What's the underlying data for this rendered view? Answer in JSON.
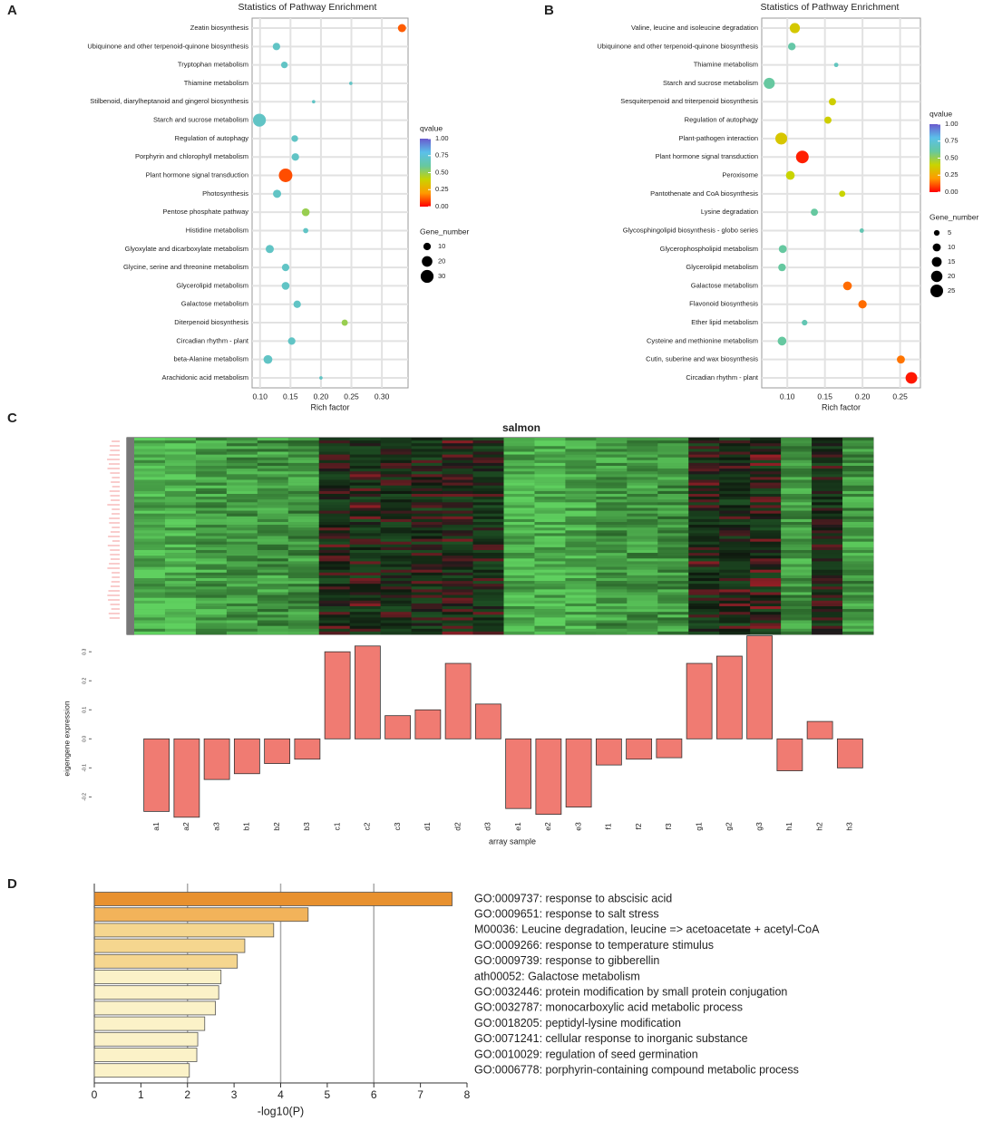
{
  "chart_data": [
    {
      "type": "bubble",
      "label": "A",
      "title": "Statistics of Pathway Enrichment",
      "xlabel": "Rich factor",
      "categories": [
        "Zeatin biosynthesis",
        "Ubiquinone and other terpenoid-quinone biosynthesis",
        "Tryptophan metabolism",
        "Thiamine metabolism",
        "Stilbenoid, diarylheptanoid and gingerol biosynthesis",
        "Starch and sucrose metabolism",
        "Regulation of autophagy",
        "Porphyrin and chlorophyll metabolism",
        "Plant hormone signal transduction",
        "Photosynthesis",
        "Pentose phosphate pathway",
        "Histidine metabolism",
        "Glyoxylate and dicarboxylate metabolism",
        "Glycine, serine and threonine metabolism",
        "Glycerolipid metabolism",
        "Galactose metabolism",
        "Diterpenoid biosynthesis",
        "Circadian rhythm - plant",
        "beta-Alanine metabolism",
        "Arachidonic acid metabolism"
      ],
      "values": [
        0.333,
        0.127,
        0.14,
        0.249,
        0.188,
        0.099,
        0.157,
        0.158,
        0.142,
        0.128,
        0.175,
        0.175,
        0.116,
        0.142,
        0.142,
        0.161,
        0.239,
        0.152,
        0.113,
        0.2
      ],
      "gene_number": [
        12,
        10,
        8,
        2,
        2,
        30,
        8,
        10,
        33,
        12,
        11,
        5,
        12,
        10,
        11,
        10,
        7,
        10,
        14,
        2
      ],
      "qvalue": [
        0.12,
        0.7,
        0.7,
        0.7,
        0.7,
        0.7,
        0.7,
        0.7,
        0.1,
        0.7,
        0.5,
        0.7,
        0.7,
        0.7,
        0.7,
        0.7,
        0.5,
        0.7,
        0.7,
        0.7
      ],
      "xlim": [
        0.087,
        0.343
      ],
      "xticks": [
        {
          "value": 0.1,
          "label": "0.10"
        },
        0.15,
        {
          "value": 0.2,
          "label": "0.20"
        },
        0.25,
        {
          "value": 0.3,
          "label": "0.30"
        }
      ],
      "color_label": "qvalue",
      "qlim": [
        0,
        1
      ],
      "qticks": [
        {
          "value": 1,
          "label": "1.00"
        },
        0.75,
        {
          "value": 0.5,
          "label": "0.50"
        },
        0.25,
        {
          "value": 0,
          "label": "0.00"
        }
      ],
      "colorbar": [
        "#ff0000",
        "#ff9a00",
        "#c9d400",
        "#66c8a0",
        "#5bc0ea",
        "#6a5acd"
      ],
      "size_label": "Gene_number",
      "size_legend": [
        10,
        20,
        30
      ],
      "grid": true
    },
    {
      "type": "bubble",
      "label": "B",
      "title": "Statistics of Pathway Enrichment",
      "xlabel": "Rich factor",
      "categories": [
        "Valine, leucine and isoleucine degradation",
        "Ubiquinone and other terpenoid-quinone biosynthesis",
        "Thiamine metabolism",
        "Starch and sucrose metabolism",
        "Sesquiterpenoid and triterpenoid biosynthesis",
        "Regulation of autophagy",
        "Plant-pathogen interaction",
        "Plant hormone signal transduction",
        "Peroxisome",
        "Pantothenate and CoA biosynthesis",
        "Lysine degradation",
        "Glycosphingolipid biosynthesis - globo series",
        "Glycerophospholipid metabolism",
        "Glycerolipid metabolism",
        "Galactose metabolism",
        "Flavonoid biosynthesis",
        "Ether lipid metabolism",
        "Cysteine and methionine metabolism",
        "Cutin, suberine and wax biosynthesis",
        "Circadian rhythm - plant"
      ],
      "values": [
        0.11,
        0.106,
        0.165,
        0.076,
        0.16,
        0.154,
        0.092,
        0.12,
        0.104,
        0.173,
        0.136,
        0.199,
        0.094,
        0.093,
        0.18,
        0.2,
        0.123,
        0.093,
        0.251,
        0.265
      ],
      "gene_number": [
        16,
        9,
        3,
        19,
        8,
        8,
        22,
        25,
        12,
        6,
        8,
        3,
        10,
        9,
        12,
        11,
        5,
        12,
        10,
        21
      ],
      "qvalue": [
        0.36,
        0.62,
        0.68,
        0.6,
        0.38,
        0.38,
        0.35,
        0.04,
        0.4,
        0.4,
        0.6,
        0.65,
        0.6,
        0.6,
        0.14,
        0.14,
        0.65,
        0.6,
        0.15,
        0.03
      ],
      "xlim": [
        0.066,
        0.277
      ],
      "xticks": [
        {
          "value": 0.1,
          "label": "0.10"
        },
        0.15,
        {
          "value": 0.2,
          "label": "0.20"
        },
        0.25
      ],
      "color_label": "qvalue",
      "qlim": [
        0,
        1
      ],
      "qticks": [
        {
          "value": 1,
          "label": "1.00"
        },
        0.75,
        {
          "value": 0.5,
          "label": "0.50"
        },
        0.25,
        {
          "value": 0,
          "label": "0.00"
        }
      ],
      "colorbar": [
        "#ff0000",
        "#ff9a00",
        "#c9d400",
        "#66c8a0",
        "#5bc0ea",
        "#6a5acd"
      ],
      "size_label": "Gene_number",
      "size_legend": [
        5,
        10,
        15,
        20,
        25
      ],
      "grid": true
    },
    {
      "type": "bar",
      "label": "C",
      "title": "salmon",
      "ylabel": "eigengene expression",
      "xlabel": "array sample",
      "categories": [
        "a1",
        "a2",
        "a3",
        "b1",
        "b2",
        "b3",
        "c1",
        "c2",
        "c3",
        "d1",
        "d2",
        "d3",
        "e1",
        "e2",
        "e3",
        "f1",
        "f2",
        "f3",
        "g1",
        "g2",
        "g3",
        "h1",
        "h2",
        "h3"
      ],
      "values": [
        -0.25,
        -0.27,
        -0.14,
        -0.12,
        -0.085,
        -0.07,
        0.3,
        0.32,
        0.08,
        0.1,
        0.26,
        0.12,
        -0.24,
        -0.26,
        -0.235,
        -0.09,
        -0.07,
        -0.065,
        0.26,
        0.285,
        0.355,
        -0.11,
        0.06,
        -0.1
      ],
      "color": "#f07b72",
      "ylim": [
        -0.28,
        0.36
      ],
      "yticks": [
        0.3,
        0.2,
        0.1,
        {
          "value": 0,
          "label": "0.0"
        },
        -0.1,
        -0.2
      ]
    },
    {
      "type": "hbar",
      "label": "D",
      "xlabel": "-log10(P)",
      "categories": [
        "GO:0009737: response to abscisic acid",
        "GO:0009651: response to salt stress",
        "M00036: Leucine degradation, leucine => acetoacetate + acetyl-CoA",
        "GO:0009266: response to temperature stimulus",
        "GO:0009739: response to gibberellin",
        "ath00052: Galactose metabolism",
        "GO:0032446: protein modification by small protein conjugation",
        "GO:0032787: monocarboxylic acid metabolic process",
        "GO:0018205: peptidyl-lysine modification",
        "GO:0071241: cellular response to inorganic substance",
        "GO:0010029: regulation of seed germination",
        "GO:0006778: porphyrin-containing compound metabolic process"
      ],
      "values": [
        7.68,
        4.59,
        3.85,
        3.23,
        3.07,
        2.72,
        2.67,
        2.6,
        2.37,
        2.22,
        2.2,
        2.04
      ],
      "colors": [
        "#e8912f",
        "#f2b35a",
        "#f5d68f",
        "#f5d68f",
        "#f5d68f",
        "#fbf2c8",
        "#fbf2c8",
        "#fbf2c8",
        "#fbf2c8",
        "#fbf2c8",
        "#fbf2c8",
        "#fbf2c8"
      ],
      "xlim": [
        0,
        8
      ],
      "xticks": [
        0,
        1,
        2,
        3,
        4,
        5,
        6,
        7,
        8
      ],
      "grid": true
    }
  ]
}
